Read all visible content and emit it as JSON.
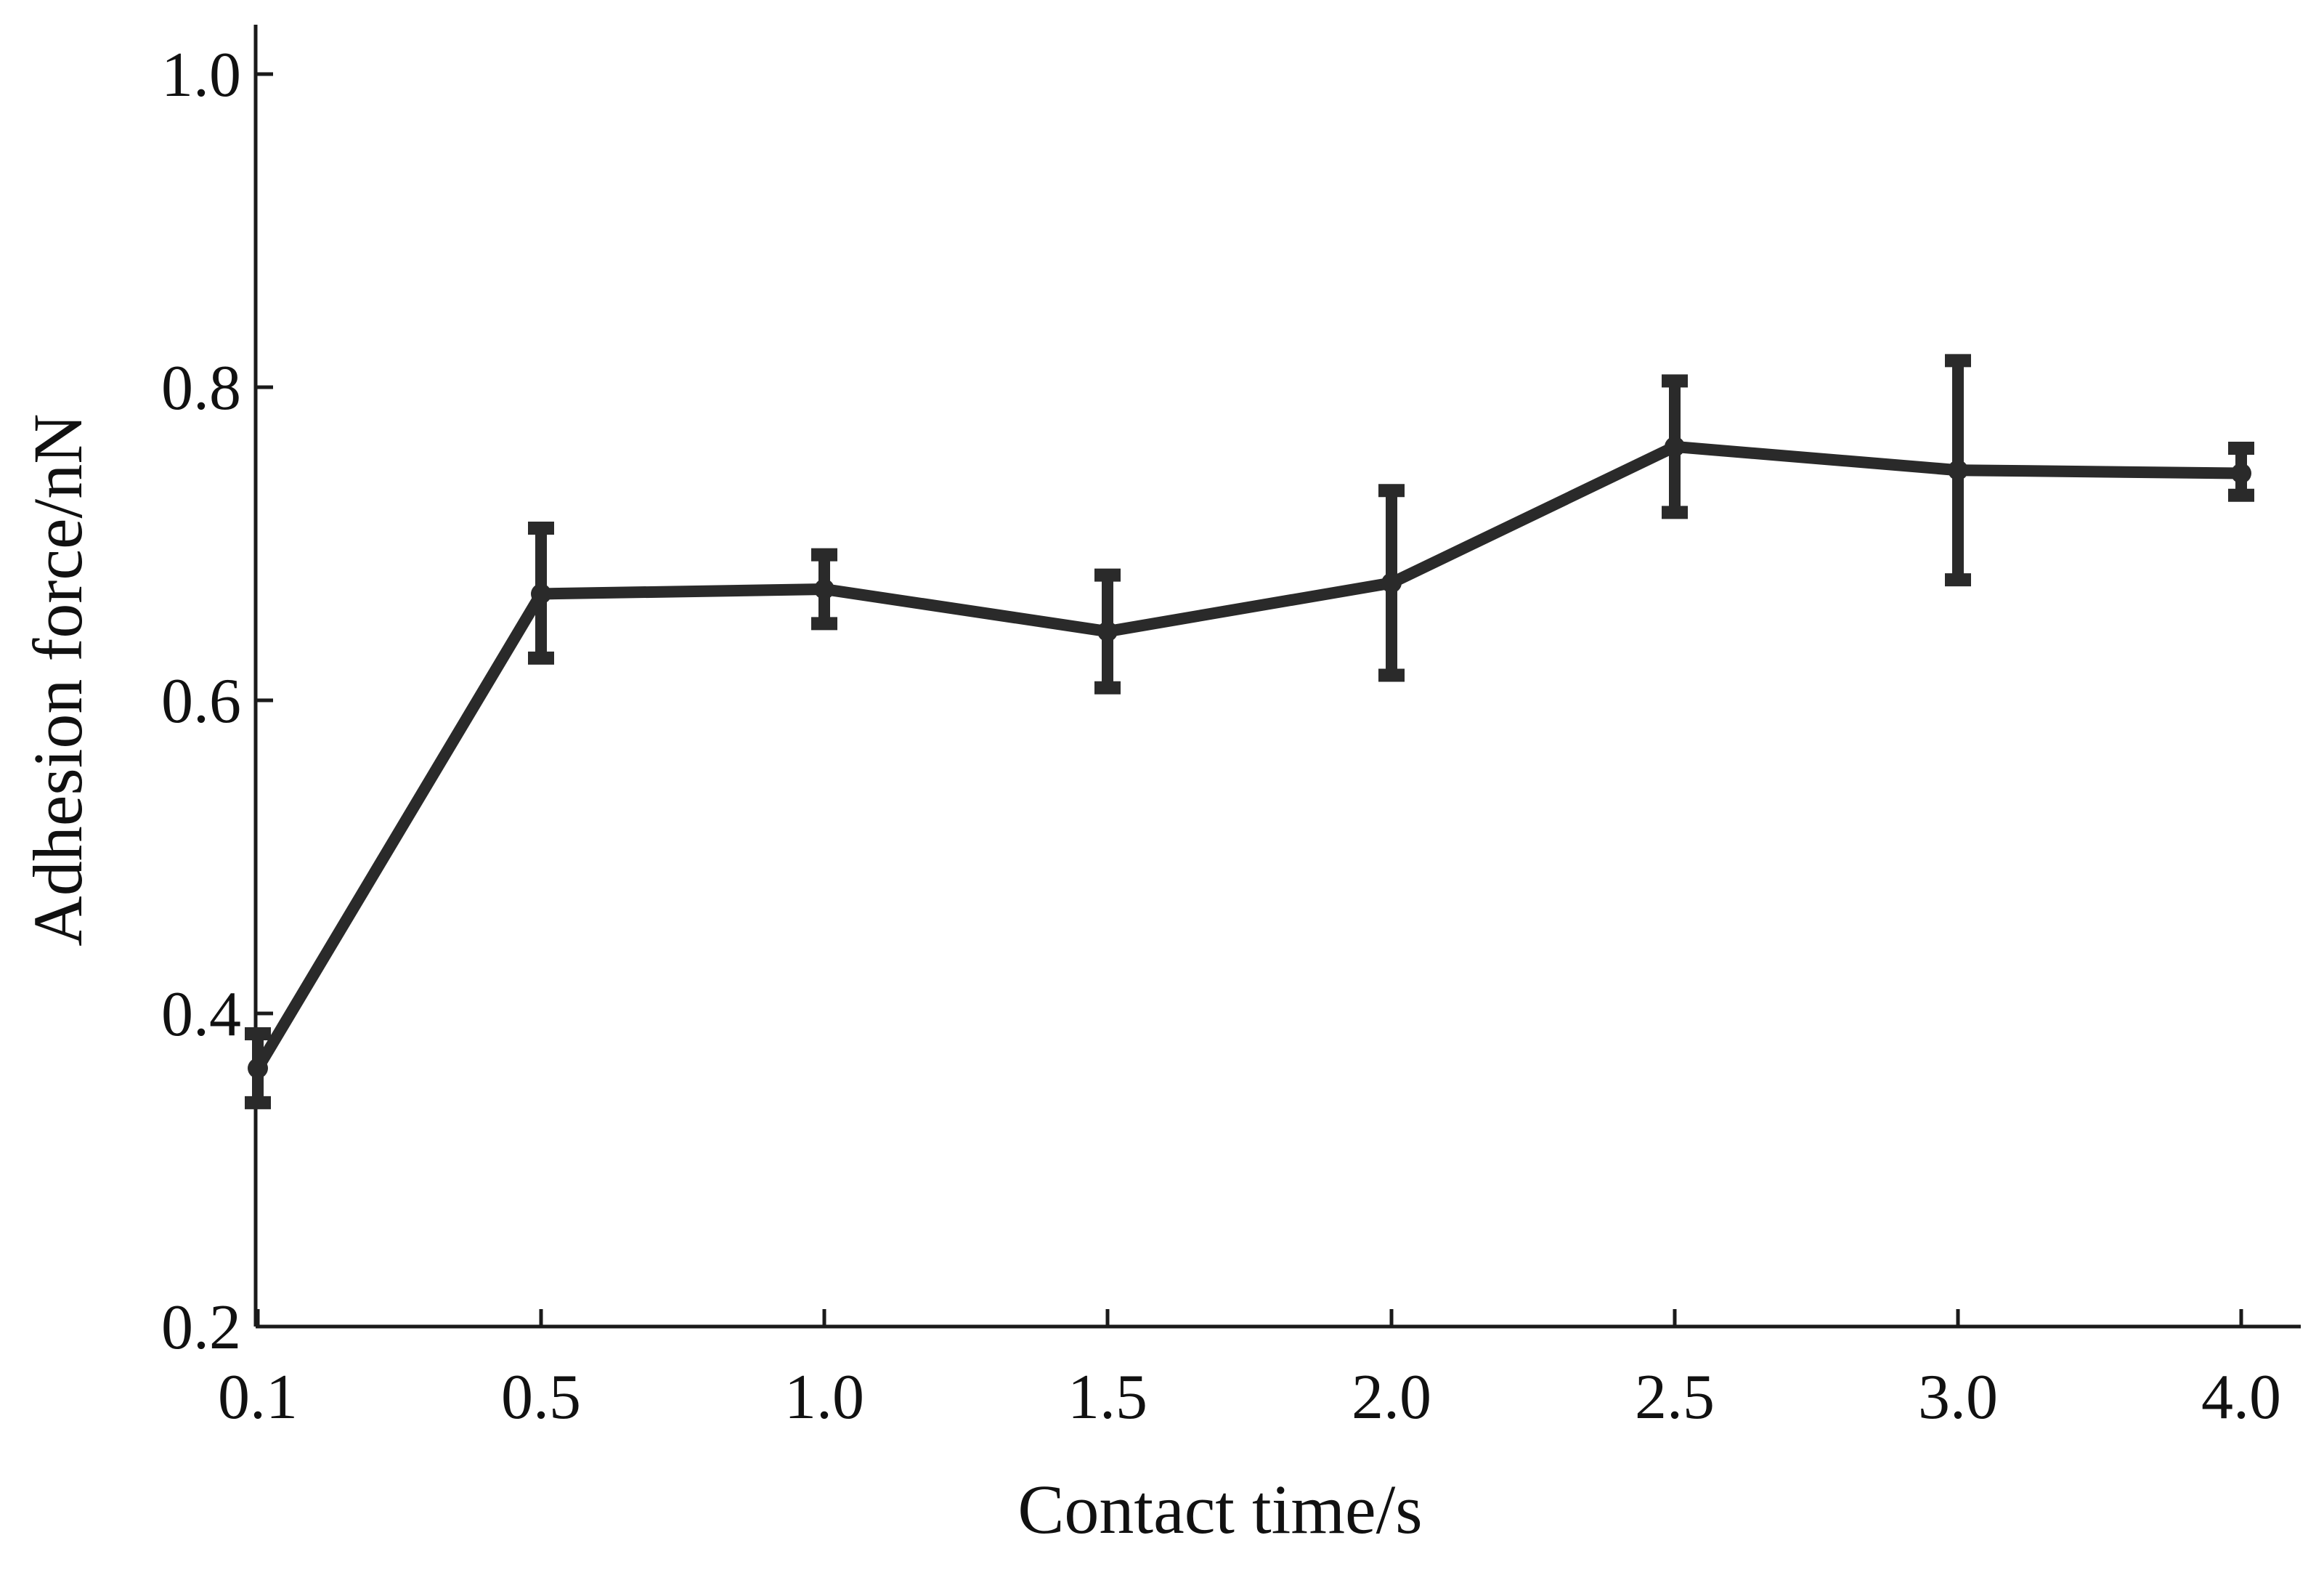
{
  "chart_data": {
    "type": "line",
    "title": "",
    "xlabel": "Contact time/s",
    "ylabel": "Adhesion force/nN",
    "categories": [
      "0.1",
      "0.5",
      "1.0",
      "1.5",
      "2.0",
      "2.5",
      "3.0",
      "4.0"
    ],
    "ylim": [
      0.2,
      1.0
    ],
    "yticks": [
      "0.2",
      "0.4",
      "0.6",
      "0.8",
      "1.0"
    ],
    "grid": false,
    "legend": "none",
    "series": [
      {
        "values": [
          0.365,
          0.668,
          0.671,
          0.644,
          0.675,
          0.762,
          0.747,
          0.745
        ],
        "error_low": [
          0.343,
          0.627,
          0.649,
          0.608,
          0.616,
          0.72,
          0.677,
          0.731
        ],
        "error_high": [
          0.387,
          0.71,
          0.693,
          0.68,
          0.734,
          0.804,
          0.817,
          0.761
        ],
        "color": "#2a2a2a"
      }
    ]
  }
}
